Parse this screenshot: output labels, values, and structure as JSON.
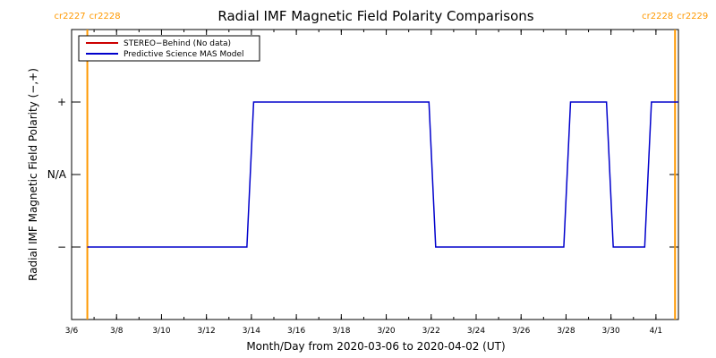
{
  "chart_data": {
    "type": "line",
    "title": "Radial IMF Magnetic Field Polarity Comparisons",
    "xlabel": "Month/Day from 2020-03-06 to 2020-04-02 (UT)",
    "ylabel": "Radial IMF Magnetic Field Polarity (−,+)",
    "x_range_days": [
      0,
      27
    ],
    "x_ticks": [
      {
        "label": "3/6",
        "day": 0
      },
      {
        "label": "3/8",
        "day": 2
      },
      {
        "label": "3/10",
        "day": 4
      },
      {
        "label": "3/12",
        "day": 6
      },
      {
        "label": "3/14",
        "day": 8
      },
      {
        "label": "3/16",
        "day": 10
      },
      {
        "label": "3/18",
        "day": 12
      },
      {
        "label": "3/20",
        "day": 14
      },
      {
        "label": "3/22",
        "day": 16
      },
      {
        "label": "3/24",
        "day": 18
      },
      {
        "label": "3/26",
        "day": 20
      },
      {
        "label": "3/28",
        "day": 22
      },
      {
        "label": "3/30",
        "day": 24
      },
      {
        "label": "4/1",
        "day": 26
      }
    ],
    "ylim": [
      -2,
      2
    ],
    "y_ticks": [
      {
        "label": "+",
        "value": 1
      },
      {
        "label": "N/A",
        "value": 0
      },
      {
        "label": "−",
        "value": -1
      }
    ],
    "series": [
      {
        "name": "STEREO−Behind (No data)",
        "color": "#cc0000",
        "x": [],
        "y": []
      },
      {
        "name": "Predictive Science MAS Model",
        "color": "#0000cc",
        "x": [
          0.7,
          7.8,
          8.1,
          15.9,
          16.2,
          21.9,
          22.2,
          23.8,
          24.1,
          25.5,
          25.8,
          27.0
        ],
        "y": [
          -1,
          -1,
          1,
          1,
          -1,
          -1,
          1,
          1,
          -1,
          -1,
          1,
          1
        ]
      }
    ],
    "carrington_markers": [
      {
        "day": 0.7,
        "label_left": "cr2227",
        "label_right": "cr2228"
      },
      {
        "day": 26.85,
        "label_left": "cr2228",
        "label_right": "cr2229"
      }
    ],
    "marker_color": "#ff9900",
    "legend_position": "top-left",
    "grid": false
  }
}
